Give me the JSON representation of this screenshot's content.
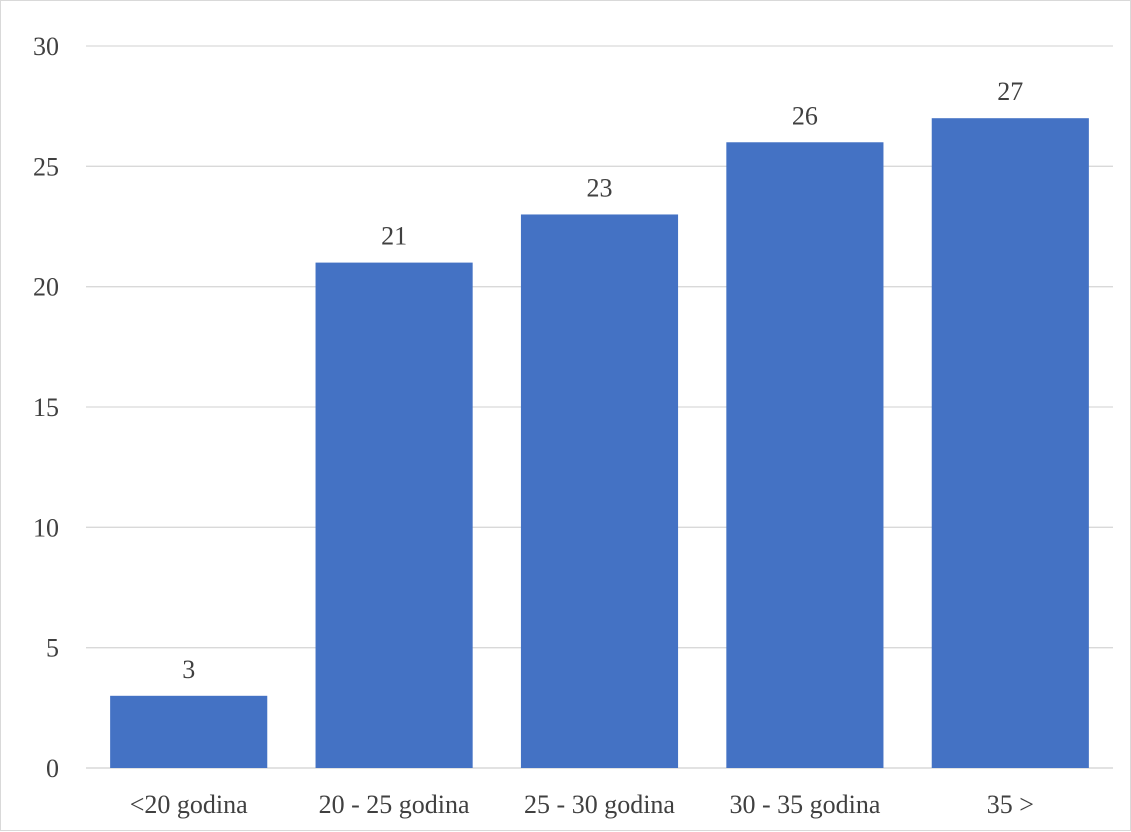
{
  "chart_data": {
    "type": "bar",
    "title": "",
    "xlabel": "",
    "ylabel": "",
    "categories": [
      "<20 godina",
      "20 - 25 godina",
      "25 - 30 godina",
      "30 - 35 godina",
      "35 >"
    ],
    "values": [
      3,
      21,
      23,
      26,
      27
    ],
    "ylim": [
      0,
      30
    ],
    "yticks": [
      0,
      5,
      10,
      15,
      20,
      25,
      30
    ],
    "grid": true,
    "legend": "none",
    "data_labels": true,
    "bar_color": "#4472C4",
    "grid_color": "#D9D9D9",
    "text_color": "#404040"
  }
}
